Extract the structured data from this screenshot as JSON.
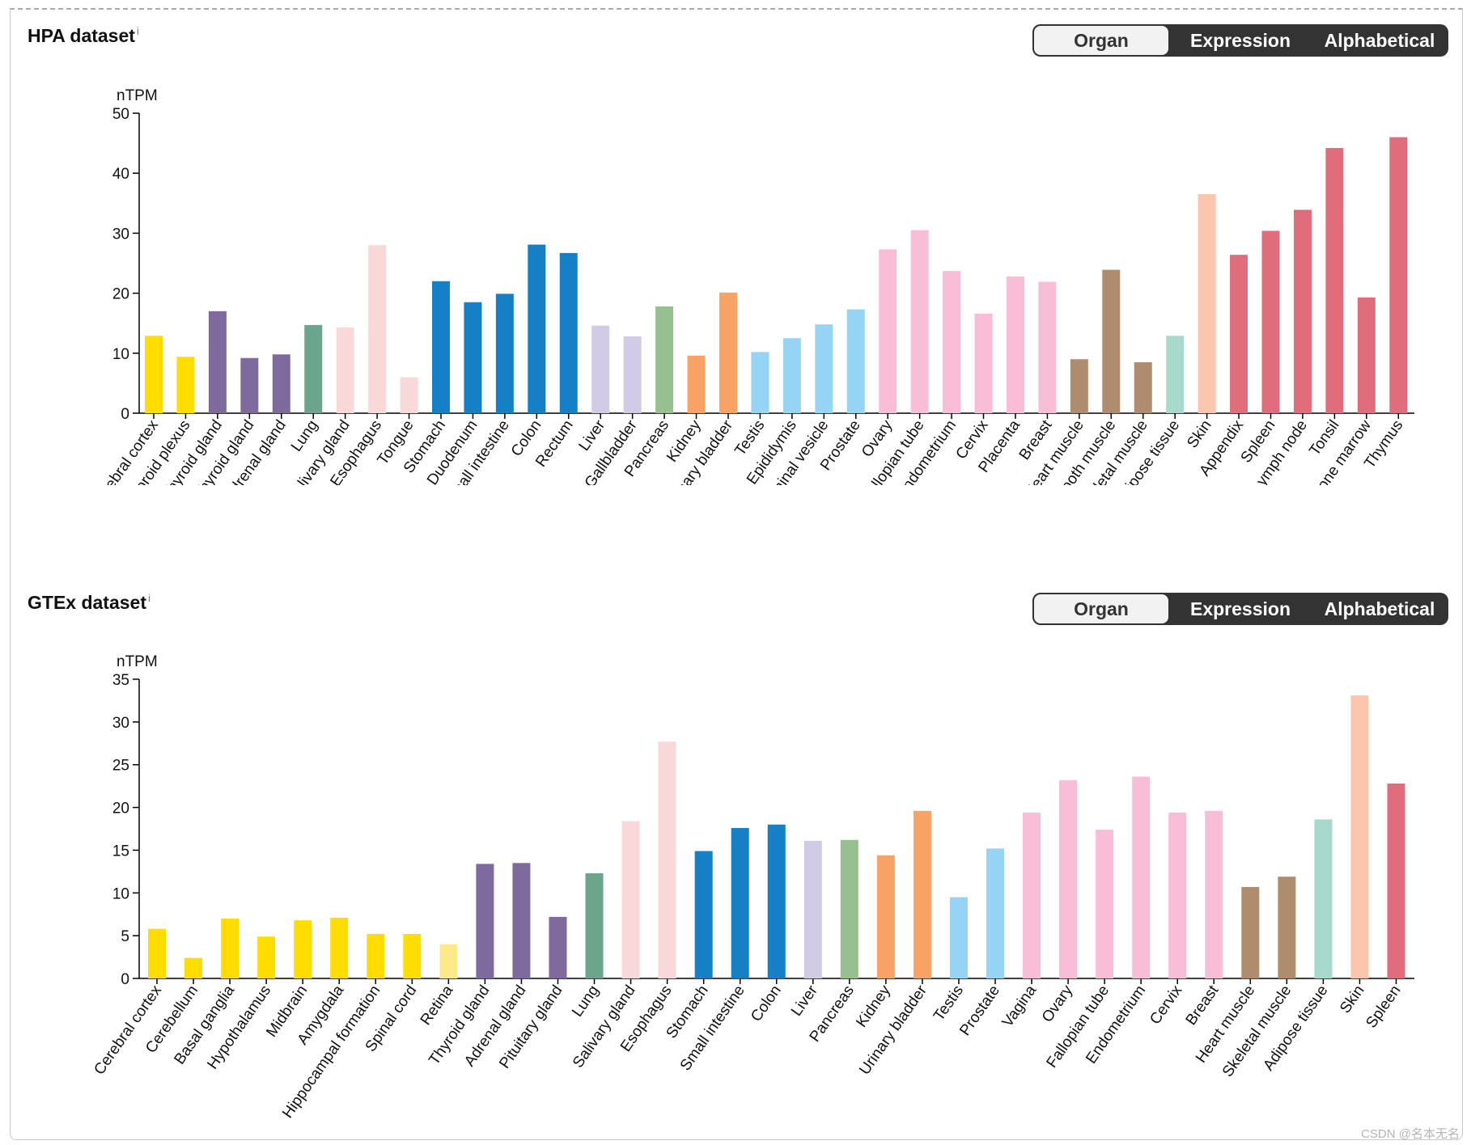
{
  "watermark": "CSDN @名本无名",
  "toggle_options": [
    "Organ",
    "Expression",
    "Alphabetical"
  ],
  "colors": {
    "brain": "#FFDD00",
    "brain_light": "#FDE98A",
    "endocrine": "#7E6A9D",
    "lung": "#6CA58E",
    "gi_upper": "#F9D8D9",
    "gi": "#1580C6",
    "liver": "#D1CBE5",
    "pancreas": "#96C08E",
    "kidney": "#F9A266",
    "male": "#95D4F3",
    "female": "#F8BDD7",
    "muscle": "#B08C6E",
    "adipose": "#A7DACD",
    "skin": "#FCC5AD",
    "blood": "#E06D7C",
    "axis": "#000000",
    "toggle_dark": "#333333",
    "toggle_light": "#F2F2F2"
  },
  "chart_data": [
    {
      "type": "bar",
      "title": "HPA dataset",
      "title_info": "i",
      "ylabel": "nTPM",
      "ylim": [
        0,
        50
      ],
      "yticks": [
        0,
        10,
        20,
        30,
        40,
        50
      ],
      "categories": [
        "Cerebral cortex",
        "Choroid plexus",
        "Thyroid gland",
        "Parathyroid gland",
        "Adrenal gland",
        "Lung",
        "Salivary gland",
        "Esophagus",
        "Tongue",
        "Stomach",
        "Duodenum",
        "Small intestine",
        "Colon",
        "Rectum",
        "Liver",
        "Gallbladder",
        "Pancreas",
        "Kidney",
        "Urinary bladder",
        "Testis",
        "Epididymis",
        "Seminal vesicle",
        "Prostate",
        "Ovary",
        "Fallopian tube",
        "Endometrium",
        "Cervix",
        "Placenta",
        "Breast",
        "Heart muscle",
        "Smooth muscle",
        "Skeletal muscle",
        "Adipose tissue",
        "Skin",
        "Appendix",
        "Spleen",
        "Lymph node",
        "Tonsil",
        "Bone marrow",
        "Thymus"
      ],
      "values": [
        12.9,
        9.4,
        17.0,
        9.2,
        9.8,
        14.7,
        14.3,
        28.0,
        6.0,
        22.0,
        18.5,
        19.9,
        28.1,
        26.7,
        14.6,
        12.8,
        17.8,
        9.6,
        20.1,
        10.2,
        12.5,
        14.8,
        17.3,
        27.3,
        30.5,
        23.7,
        16.6,
        22.8,
        21.9,
        9.0,
        23.9,
        8.5,
        12.9,
        36.5,
        26.4,
        30.4,
        33.9,
        44.2,
        19.3,
        46.0
      ],
      "bar_colors": [
        "brain",
        "brain",
        "endocrine",
        "endocrine",
        "endocrine",
        "lung",
        "gi_upper",
        "gi_upper",
        "gi_upper",
        "gi",
        "gi",
        "gi",
        "gi",
        "gi",
        "liver",
        "liver",
        "pancreas",
        "kidney",
        "kidney",
        "male",
        "male",
        "male",
        "male",
        "female",
        "female",
        "female",
        "female",
        "female",
        "female",
        "muscle",
        "muscle",
        "muscle",
        "adipose",
        "skin",
        "blood",
        "blood",
        "blood",
        "blood",
        "blood",
        "blood"
      ]
    },
    {
      "type": "bar",
      "title": "GTEx dataset",
      "title_info": "i",
      "ylabel": "nTPM",
      "ylim": [
        0,
        35
      ],
      "yticks": [
        0,
        5,
        10,
        15,
        20,
        25,
        30,
        35
      ],
      "categories": [
        "Cerebral cortex",
        "Cerebellum",
        "Basal ganglia",
        "Hypothalamus",
        "Midbrain",
        "Amygdala",
        "Hippocampal formation",
        "Spinal cord",
        "Retina",
        "Thyroid gland",
        "Adrenal gland",
        "Pituitary gland",
        "Lung",
        "Salivary gland",
        "Esophagus",
        "Stomach",
        "Small intestine",
        "Colon",
        "Liver",
        "Pancreas",
        "Kidney",
        "Urinary bladder",
        "Testis",
        "Prostate",
        "Vagina",
        "Ovary",
        "Fallopian tube",
        "Endometrium",
        "Cervix",
        "Breast",
        "Heart muscle",
        "Skeletal muscle",
        "Adipose tissue",
        "Skin",
        "Spleen"
      ],
      "values": [
        5.8,
        2.4,
        7.0,
        4.9,
        6.8,
        7.1,
        5.2,
        5.2,
        4.0,
        13.4,
        13.5,
        7.2,
        12.3,
        18.4,
        27.7,
        14.9,
        17.6,
        18.0,
        16.1,
        16.2,
        14.4,
        19.6,
        9.5,
        15.2,
        19.4,
        23.2,
        17.4,
        23.6,
        19.4,
        19.6,
        10.7,
        11.9,
        18.6,
        33.1,
        22.8
      ],
      "bar_colors": [
        "brain",
        "brain",
        "brain",
        "brain",
        "brain",
        "brain",
        "brain",
        "brain",
        "brain_light",
        "endocrine",
        "endocrine",
        "endocrine",
        "lung",
        "gi_upper",
        "gi_upper",
        "gi",
        "gi",
        "gi",
        "liver",
        "pancreas",
        "kidney",
        "kidney",
        "male",
        "male",
        "female",
        "female",
        "female",
        "female",
        "female",
        "female",
        "muscle",
        "muscle",
        "adipose",
        "skin",
        "blood"
      ]
    }
  ]
}
